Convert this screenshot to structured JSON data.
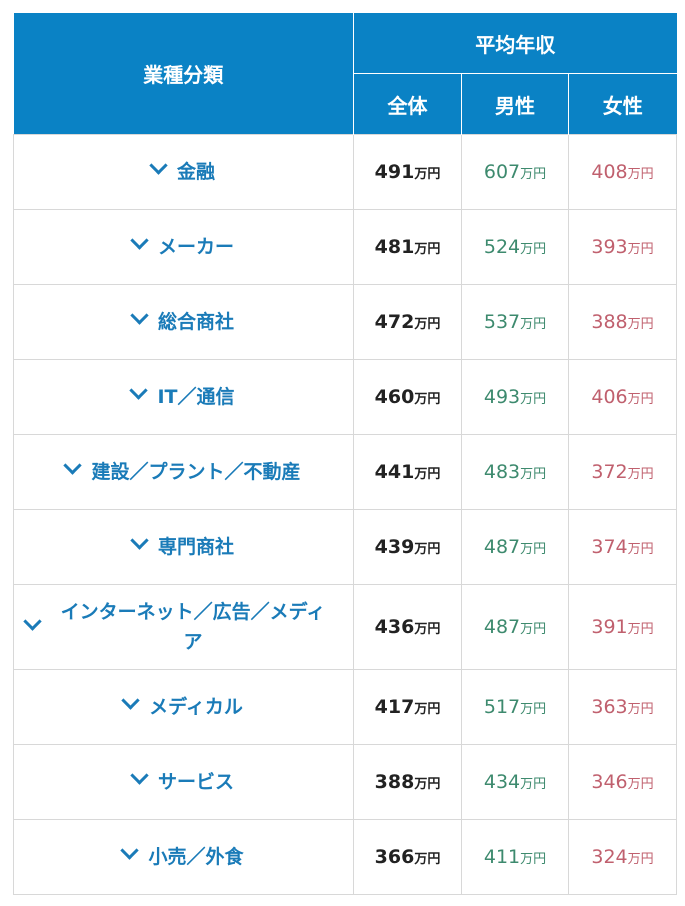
{
  "header": {
    "category": "業種分類",
    "average_income": "平均年収",
    "all": "全体",
    "male": "男性",
    "female": "女性"
  },
  "unit": "万円",
  "colors": {
    "header_bg": "#0a82c5",
    "category_text": "#1a7bb8",
    "male_text": "#3d8a6e",
    "female_text": "#c0606e"
  },
  "rows": [
    {
      "category": "金融",
      "all": "491",
      "male": "607",
      "female": "408"
    },
    {
      "category": "メーカー",
      "all": "481",
      "male": "524",
      "female": "393"
    },
    {
      "category": "総合商社",
      "all": "472",
      "male": "537",
      "female": "388"
    },
    {
      "category": "IT／通信",
      "all": "460",
      "male": "493",
      "female": "406"
    },
    {
      "category": "建設／プラント／不動産",
      "all": "441",
      "male": "483",
      "female": "372"
    },
    {
      "category": "専門商社",
      "all": "439",
      "male": "487",
      "female": "374"
    },
    {
      "category": "インターネット／広告／メディア",
      "all": "436",
      "male": "487",
      "female": "391"
    },
    {
      "category": "メディカル",
      "all": "417",
      "male": "517",
      "female": "363"
    },
    {
      "category": "サービス",
      "all": "388",
      "male": "434",
      "female": "346"
    },
    {
      "category": "小売／外食",
      "all": "366",
      "male": "411",
      "female": "324"
    }
  ]
}
